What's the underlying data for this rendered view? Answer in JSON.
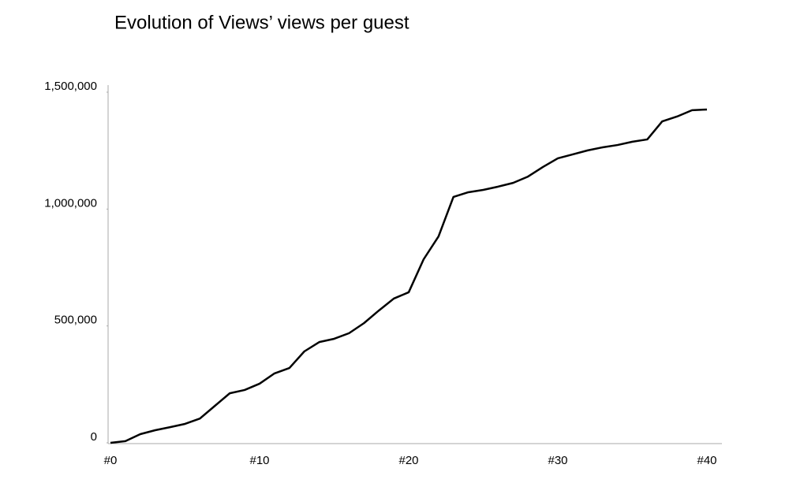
{
  "chart_data": {
    "type": "line",
    "title": "Evolution of Views’ views per guest",
    "categories": [
      "#0",
      null,
      null,
      null,
      null,
      null,
      null,
      null,
      null,
      null,
      "#10",
      null,
      null,
      null,
      null,
      null,
      null,
      null,
      null,
      null,
      "#20",
      null,
      null,
      null,
      null,
      null,
      null,
      null,
      null,
      null,
      "#30",
      null,
      null,
      null,
      null,
      null,
      null,
      null,
      null,
      null,
      "#40"
    ],
    "values": [
      0,
      7000,
      37000,
      54000,
      67000,
      81000,
      104000,
      158000,
      212000,
      226000,
      253000,
      297000,
      320000,
      391000,
      431000,
      445000,
      469000,
      512000,
      566000,
      617000,
      644000,
      785000,
      883000,
      1052000,
      1072000,
      1082000,
      1096000,
      1112000,
      1139000,
      1180000,
      1217000,
      1234000,
      1251000,
      1264000,
      1274000,
      1288000,
      1298000,
      1375000,
      1396000,
      1423000,
      1426000
    ],
    "color": "#000000",
    "ylim": [
      0,
      1500000
    ],
    "yticks": [
      0,
      {
        "value": 500000,
        "label": "500,000"
      },
      {
        "value": 1000000,
        "label": "1,000,000"
      },
      {
        "value": 1500000,
        "label": "1,500,000"
      }
    ],
    "grid": false
  }
}
